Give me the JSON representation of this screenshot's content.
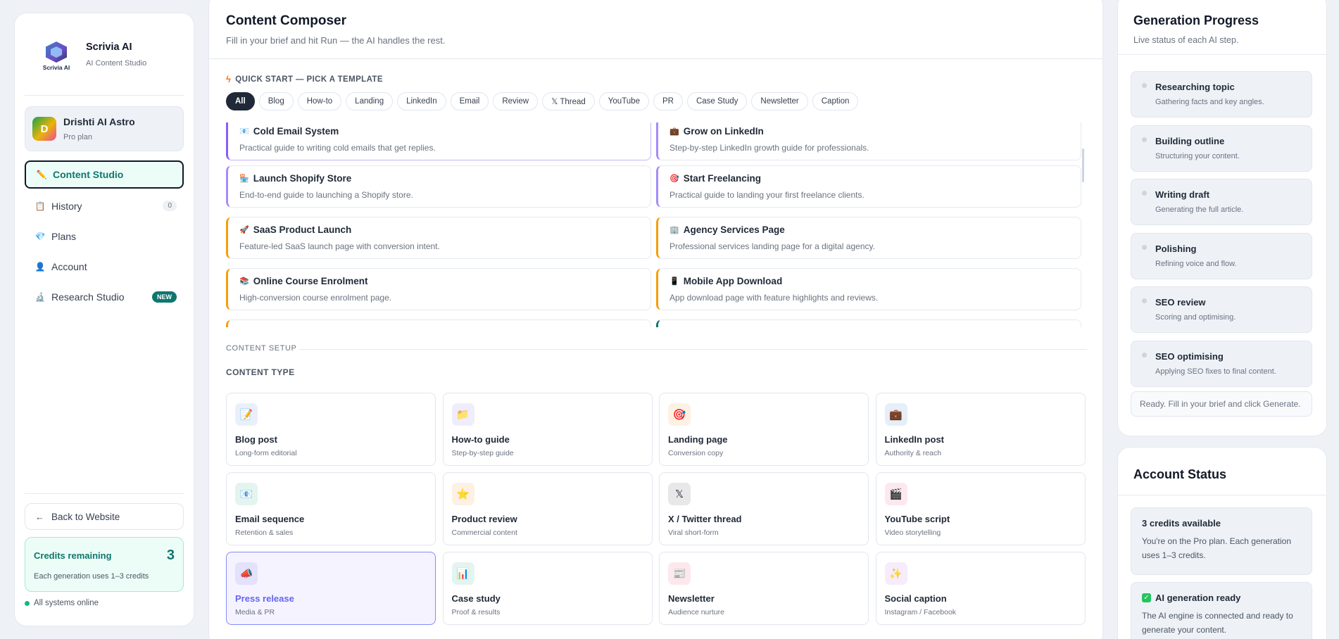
{
  "brand": {
    "name": "Scrivia AI",
    "subtitle": "AI Content Studio",
    "logo_text": "Scrivia AI"
  },
  "user": {
    "initial": "D",
    "name": "Drishti AI Astro",
    "plan": "Pro plan"
  },
  "nav": [
    {
      "label": "Content Studio",
      "icon": "pencil-icon",
      "glyph": "✏️"
    },
    {
      "label": "History",
      "icon": "history-icon",
      "glyph": "📋",
      "count": "0"
    },
    {
      "label": "Plans",
      "icon": "gem-icon",
      "glyph": "💎"
    },
    {
      "label": "Account",
      "icon": "user-icon",
      "glyph": "👤"
    },
    {
      "label": "Research Studio",
      "icon": "microscope-icon",
      "glyph": "🔬",
      "badge": "NEW"
    }
  ],
  "sidebar_footer": {
    "back_label": "Back to Website",
    "credits_title": "Credits remaining",
    "credits_value": "3",
    "credits_note": "Each generation uses 1–3 credits",
    "status": "All systems online"
  },
  "composer": {
    "title": "Content Composer",
    "subtitle": "Fill in your brief and hit Run — the AI handles the rest.",
    "quick_start_label": "QUICK START — PICK A TEMPLATE",
    "chips": [
      "All",
      "Blog",
      "How-to",
      "Landing",
      "LinkedIn",
      "Email",
      "Review",
      "𝕏 Thread",
      "YouTube",
      "PR",
      "Case Study",
      "Newsletter",
      "Caption"
    ],
    "templates": [
      {
        "glyph": "📧",
        "title": "Cold Email System",
        "desc": "Practical guide to writing cold emails that get replies."
      },
      {
        "glyph": "💼",
        "title": "Grow on LinkedIn",
        "desc": "Step-by-step LinkedIn growth guide for professionals."
      },
      {
        "glyph": "🏪",
        "title": "Launch Shopify Store",
        "desc": "End-to-end guide to launching a Shopify store."
      },
      {
        "glyph": "🎯",
        "title": "Start Freelancing",
        "desc": "Practical guide to landing your first freelance clients."
      },
      {
        "glyph": "🚀",
        "title": "SaaS Product Launch",
        "desc": "Feature-led SaaS launch page with conversion intent."
      },
      {
        "glyph": "🏢",
        "title": "Agency Services Page",
        "desc": "Professional services landing page for a digital agency."
      },
      {
        "glyph": "📚",
        "title": "Online Course Enrolment",
        "desc": "High-conversion course enrolment page."
      },
      {
        "glyph": "📱",
        "title": "Mobile App Download",
        "desc": "App download page with feature highlights and reviews."
      }
    ],
    "setup_label": "CONTENT SETUP",
    "content_type_label": "CONTENT TYPE",
    "content_types": [
      {
        "glyph": "📝",
        "title": "Blog post",
        "sub": "Long-form editorial",
        "bg": "#eaf0fb"
      },
      {
        "glyph": "📁",
        "title": "How-to guide",
        "sub": "Step-by-step guide",
        "bg": "#efedfb"
      },
      {
        "glyph": "🎯",
        "title": "Landing page",
        "sub": "Conversion copy",
        "bg": "#fdf1e4"
      },
      {
        "glyph": "💼",
        "title": "LinkedIn post",
        "sub": "Authority & reach",
        "bg": "#e6eef8"
      },
      {
        "glyph": "📧",
        "title": "Email sequence",
        "sub": "Retention & sales",
        "bg": "#e4f4ef"
      },
      {
        "glyph": "⭐",
        "title": "Product review",
        "sub": "Commercial content",
        "bg": "#fdf1e4"
      },
      {
        "glyph": "𝕏",
        "title": "X / Twitter thread",
        "sub": "Viral short-form",
        "bg": "#e8e8e8"
      },
      {
        "glyph": "🎬",
        "title": "YouTube script",
        "sub": "Video storytelling",
        "bg": "#fde8ee"
      },
      {
        "glyph": "📣",
        "title": "Press release",
        "sub": "Media & PR",
        "bg": "#e3e1fb"
      },
      {
        "glyph": "📊",
        "title": "Case study",
        "sub": "Proof & results",
        "bg": "#e4f4ef"
      },
      {
        "glyph": "📰",
        "title": "Newsletter",
        "sub": "Audience nurture",
        "bg": "#fde8ee"
      },
      {
        "glyph": "✨",
        "title": "Social caption",
        "sub": "Instagram / Facebook",
        "bg": "#f6ecfb"
      }
    ]
  },
  "progress": {
    "title": "Generation Progress",
    "subtitle": "Live status of each AI step.",
    "steps": [
      {
        "title": "Researching topic",
        "sub": "Gathering facts and key angles."
      },
      {
        "title": "Building outline",
        "sub": "Structuring your content."
      },
      {
        "title": "Writing draft",
        "sub": "Generating the full article."
      },
      {
        "title": "Polishing",
        "sub": "Refining voice and flow."
      },
      {
        "title": "SEO review",
        "sub": "Scoring and optimising."
      },
      {
        "title": "SEO optimising",
        "sub": "Applying SEO fixes to final content."
      }
    ],
    "ready_text": "Ready. Fill in your brief and click Generate."
  },
  "account_status": {
    "title": "Account Status",
    "credits_title": "3 credits available",
    "credits_body": "You're on the Pro plan. Each generation uses 1–3 credits.",
    "ai_title": "AI generation ready",
    "ai_body": "The AI engine is connected and ready to generate your content."
  }
}
